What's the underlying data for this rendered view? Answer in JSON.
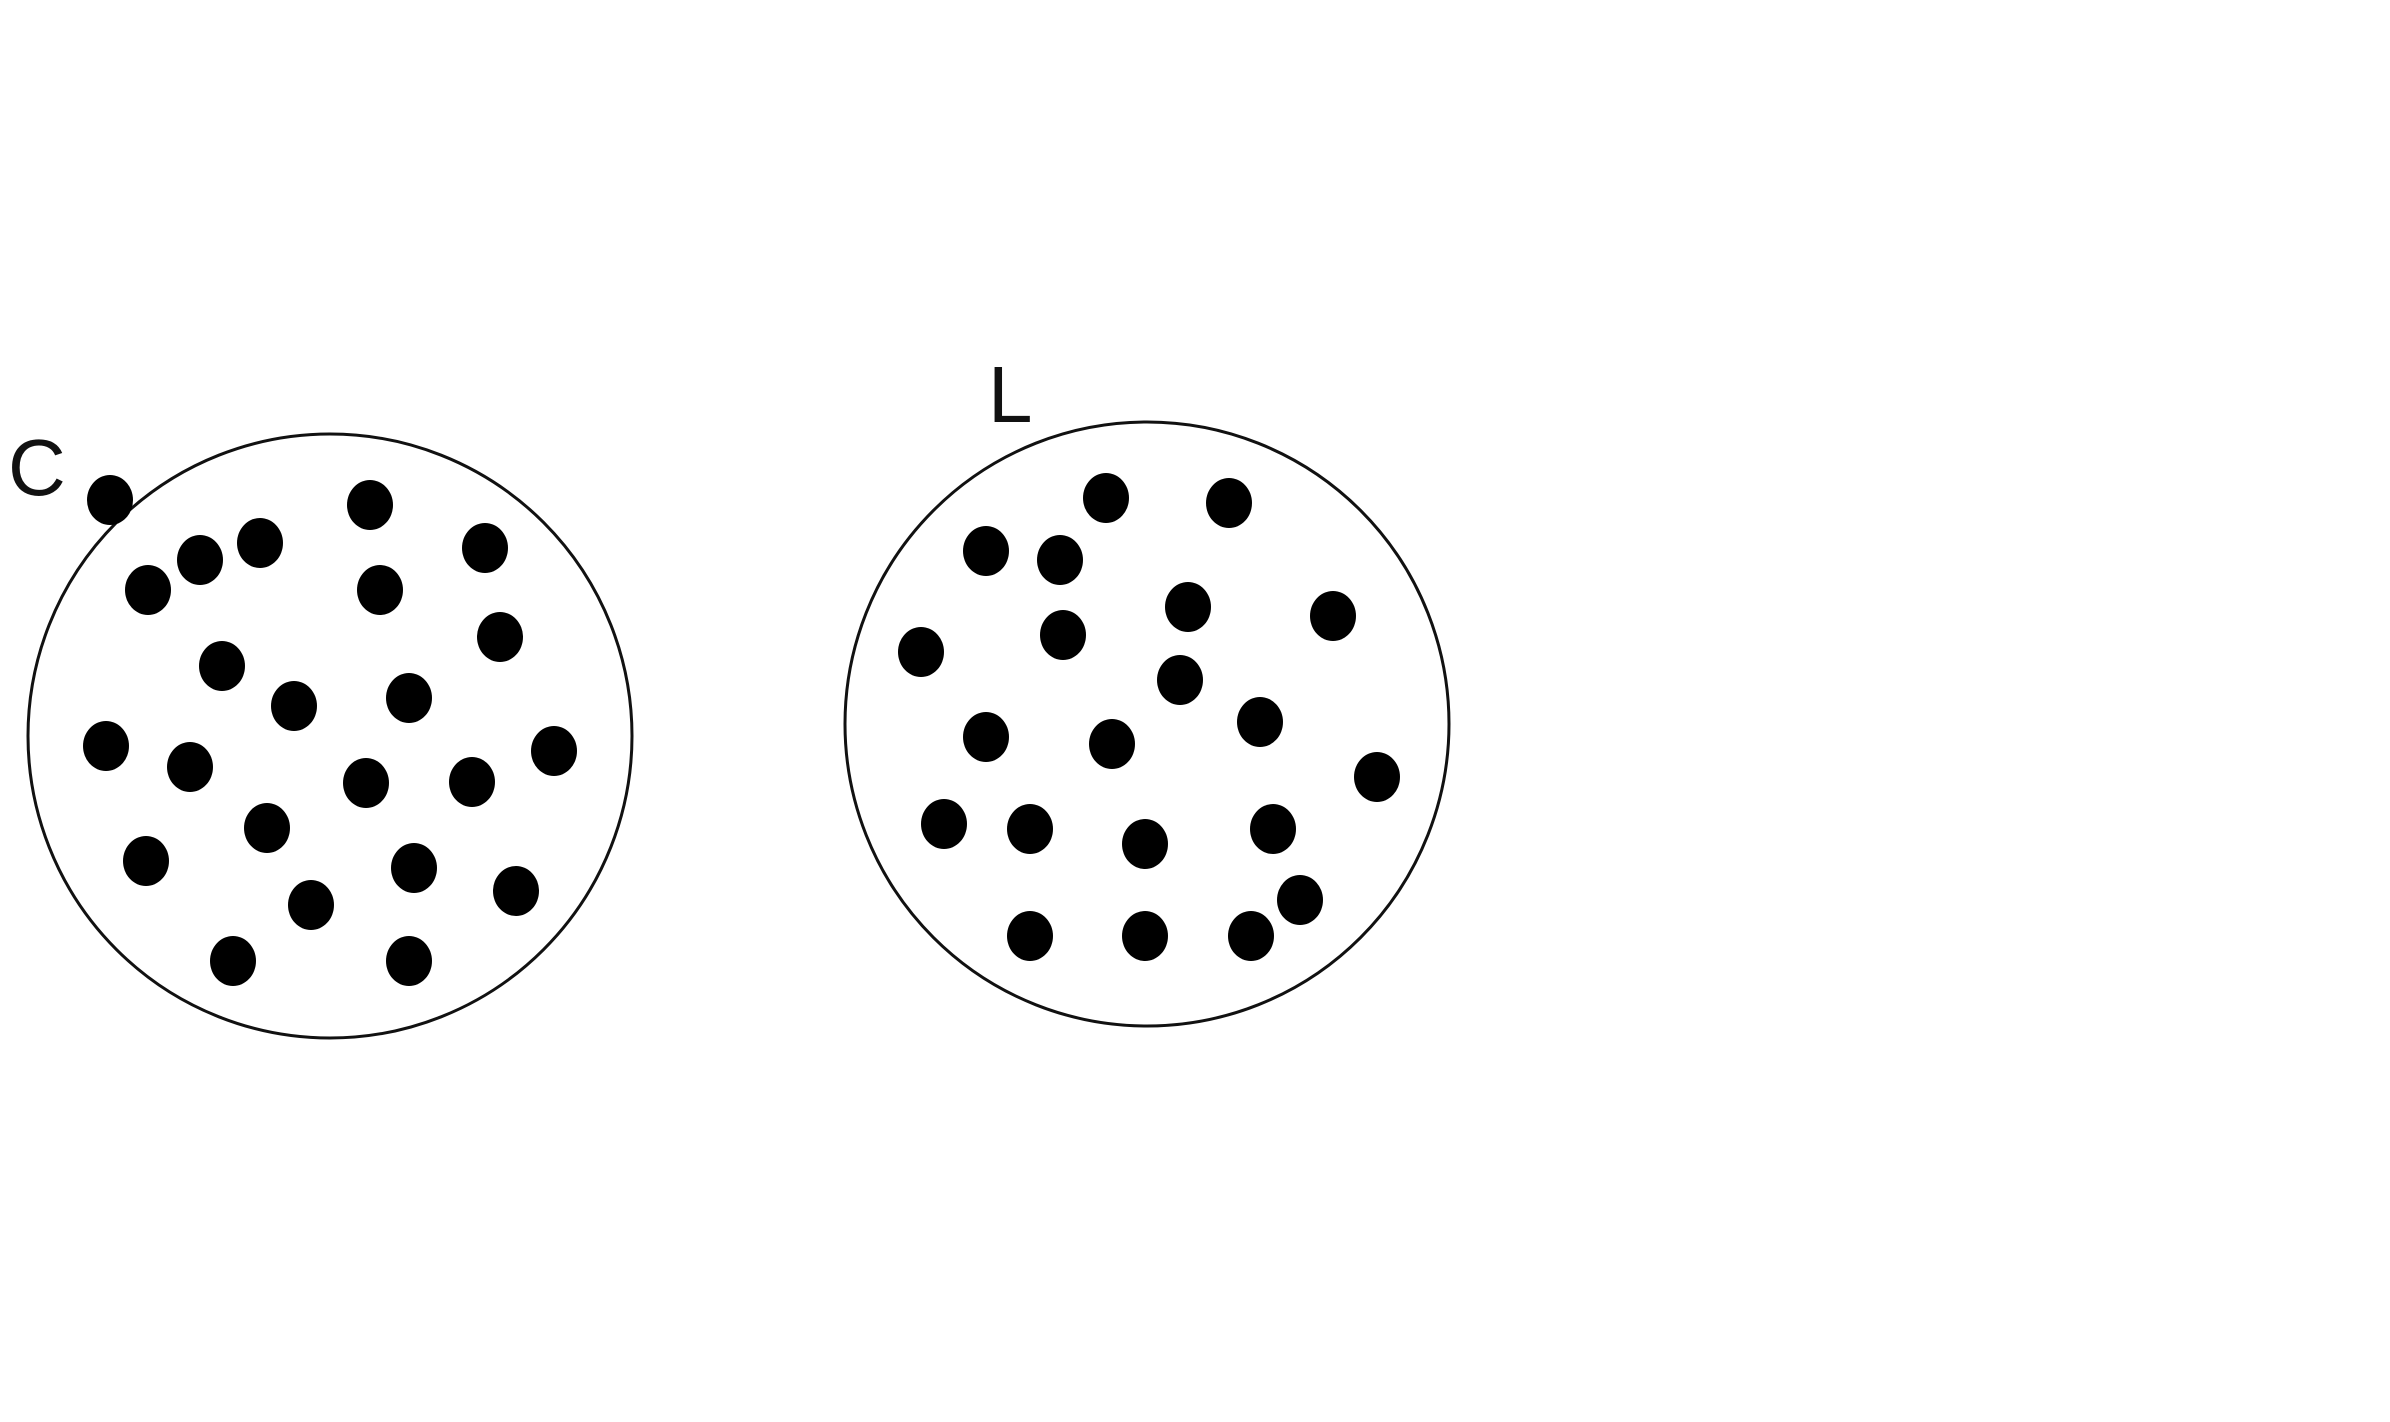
{
  "containers": [
    {
      "id": "c",
      "label": "C",
      "dot_count": 23
    },
    {
      "id": "l",
      "label": "L",
      "dot_count": 21
    }
  ],
  "colors": {
    "outline": "#111111",
    "dot": "#000000",
    "background": "#ffffff"
  }
}
